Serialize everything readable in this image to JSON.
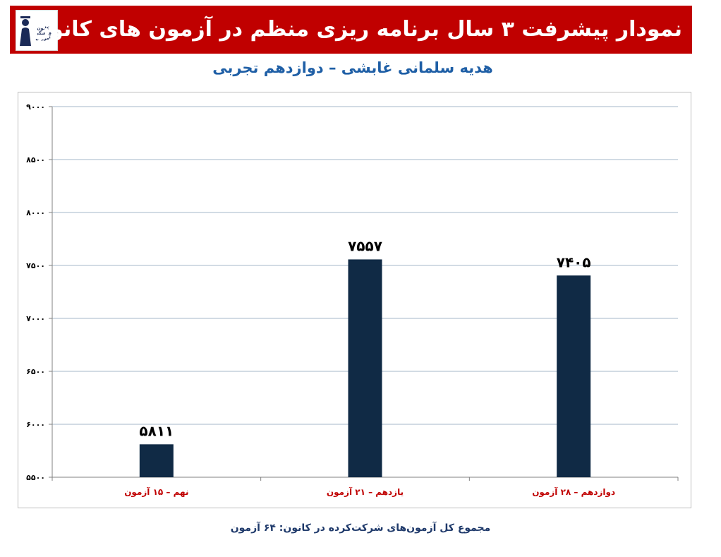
{
  "header": {
    "title": "نمودار پیشرفت ۳ سال برنامه ریزی منظم در آزمون های کانون",
    "logo_text": "کانون فرهنگی آموزش",
    "background_color": "#c00000"
  },
  "chart_data": {
    "type": "bar",
    "title": "هدیه سلمانی غابشی – دوازدهم تجربی",
    "categories": [
      "نهم – ۱۵ آزمون",
      "یازدهم – ۲۱ آزمون",
      "دوازدهم – ۲۸ آزمون"
    ],
    "values": [
      5811,
      7557,
      7405
    ],
    "value_labels": [
      "۵۸۱۱",
      "۷۵۵۷",
      "۷۴۰۵"
    ],
    "ylim": [
      5500,
      9000
    ],
    "yticks": [
      5500,
      6000,
      6500,
      7000,
      7500,
      8000,
      8500,
      9000
    ],
    "ytick_labels": [
      "۵۵۰۰",
      "۶۰۰۰",
      "۶۵۰۰",
      "۷۰۰۰",
      "۷۵۰۰",
      "۸۰۰۰",
      "۸۵۰۰",
      "۹۰۰۰"
    ],
    "grid": true,
    "bar_color": "#102a45",
    "category_label_color": "#c00000",
    "gridline_color": "#a6b7c9"
  },
  "footer": {
    "text": "مجموع کل آزمون‌های شرکت‌کرده در کانون: ۶۴ آزمون"
  }
}
